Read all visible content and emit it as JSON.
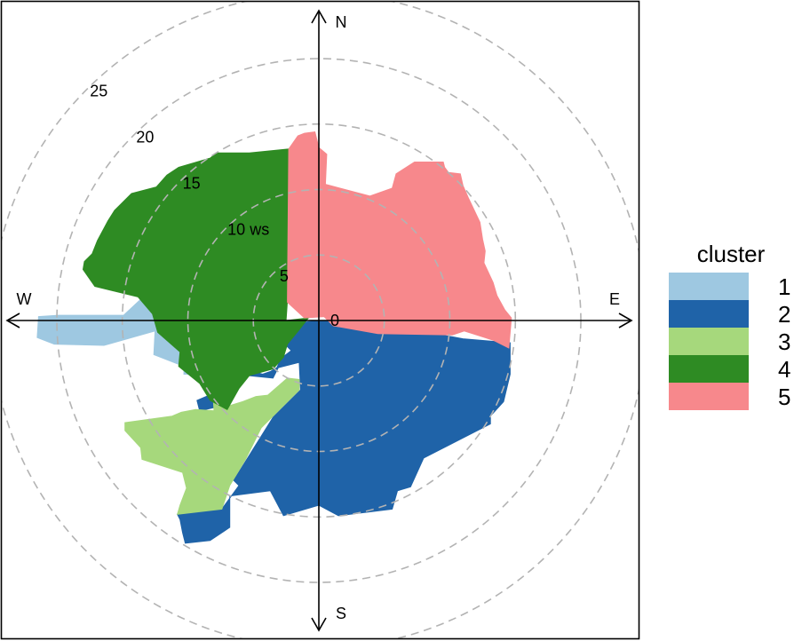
{
  "chart_data": {
    "type": "polar-cluster",
    "radial_variable": "ws",
    "radial_ticks": [
      0,
      5,
      10,
      15,
      20,
      25
    ],
    "radial_tick_labels": [
      "0",
      "5",
      "10 ws",
      "15",
      "20",
      "25"
    ],
    "radial_max": 25,
    "directions": [
      "N",
      "E",
      "S",
      "W"
    ],
    "legend": {
      "title": "cluster",
      "placement": "right",
      "entries": [
        {
          "label": "1",
          "color": "#9EC8E1"
        },
        {
          "label": "2",
          "color": "#1F63A8"
        },
        {
          "label": "3",
          "color": "#A6D87C"
        },
        {
          "label": "4",
          "color": "#2E8B23"
        },
        {
          "label": "5",
          "color": "#F7888C"
        }
      ]
    },
    "clusters": [
      {
        "id": "1",
        "polygon": [
          [
            -19.9,
            0.4
          ],
          [
            -14.9,
            0.4
          ],
          [
            -13.4,
            1.8
          ],
          [
            -10.2,
            2.6
          ],
          [
            -6.5,
            2.3
          ],
          [
            -6.5,
            -4.1
          ],
          [
            -10.3,
            -4.1
          ],
          [
            -10.3,
            -3.5
          ],
          [
            -12.6,
            -2.6
          ],
          [
            -12.5,
            -0.8
          ],
          [
            -16.4,
            -1.9
          ],
          [
            -20.2,
            -1.8
          ],
          [
            -21.5,
            -1.3
          ],
          [
            -21.4,
            0.3
          ]
        ]
      },
      {
        "id": "2",
        "polygon": [
          [
            0,
            0
          ],
          [
            3.4,
            0
          ],
          [
            11,
            -1.4
          ],
          [
            14.6,
            -1.7
          ],
          [
            14.6,
            -4.1
          ],
          [
            14.1,
            -6.2
          ],
          [
            13.1,
            -7.3
          ],
          [
            13.1,
            -7.9
          ],
          [
            8,
            -10.5
          ],
          [
            7,
            -12.7
          ],
          [
            6,
            -13
          ],
          [
            5.6,
            -14.4
          ],
          [
            1.5,
            -14.9
          ],
          [
            0,
            -14.1
          ],
          [
            -2.7,
            -14.9
          ],
          [
            -3.7,
            -13
          ],
          [
            -6.8,
            -13.4
          ],
          [
            -6.8,
            -15.8
          ],
          [
            -8.3,
            -16.8
          ],
          [
            -10.2,
            -17
          ],
          [
            -10.4,
            -16.2
          ],
          [
            -10.6,
            -15.2
          ],
          [
            -10.8,
            -14.8
          ],
          [
            -7.4,
            -14.4
          ],
          [
            -6.1,
            -12.6
          ],
          [
            -6.5,
            -12.2
          ],
          [
            -3.5,
            -7.4
          ],
          [
            -1.4,
            -5.3
          ],
          [
            -1.5,
            -3.2
          ],
          [
            -3.1,
            -3.6
          ],
          [
            -3.5,
            -4.4
          ],
          [
            -5.5,
            -4.2
          ],
          [
            -6.1,
            -4.8
          ],
          [
            -6.6,
            -4.8
          ],
          [
            -7,
            -6.6
          ],
          [
            -7.8,
            -6.6
          ],
          [
            -9.1,
            -6.9
          ],
          [
            -9.3,
            -6.1
          ],
          [
            -5.8,
            -4.6
          ],
          [
            -5.9,
            -3.7
          ],
          [
            -5.2,
            -3.8
          ],
          [
            -4.3,
            -4.1
          ],
          [
            -3.7,
            -3.9
          ],
          [
            -3.2,
            -3.6
          ],
          [
            -2.9,
            -2.9
          ],
          [
            -2.1,
            -2.3
          ],
          [
            -2.5,
            -1.9
          ],
          [
            -2.6,
            -1.2
          ],
          [
            -1.6,
            -0.2
          ]
        ]
      },
      {
        "id": "3",
        "polygon": [
          [
            -8.1,
            -5.3
          ],
          [
            -7.2,
            -4.4
          ],
          [
            -6.8,
            -6.5
          ],
          [
            -5.8,
            -6.2
          ],
          [
            -4.8,
            -5.8
          ],
          [
            -3.9,
            -5.7
          ],
          [
            -2.4,
            -4.4
          ],
          [
            -1.5,
            -4.5
          ],
          [
            -1.5,
            -5.3
          ],
          [
            -4.4,
            -8.2
          ],
          [
            -5.6,
            -10.6
          ],
          [
            -6.8,
            -12.6
          ],
          [
            -7.4,
            -14.4
          ],
          [
            -10.8,
            -14.8
          ],
          [
            -10.6,
            -14.1
          ],
          [
            -10.1,
            -12.8
          ],
          [
            -10.4,
            -11.6
          ],
          [
            -13.5,
            -10.6
          ],
          [
            -13.6,
            -9.7
          ],
          [
            -14.8,
            -8.4
          ],
          [
            -14.8,
            -7.8
          ],
          [
            -11.2,
            -7.3
          ],
          [
            -10.5,
            -7
          ],
          [
            -9.4,
            -6.8
          ],
          [
            -8,
            -6.9
          ]
        ]
      },
      {
        "id": "4",
        "polygon": [
          [
            -2.5,
            0
          ],
          [
            -2.4,
            1.5
          ],
          [
            -2.3,
            12.9
          ],
          [
            -2.3,
            13.1
          ],
          [
            -5.3,
            12.8
          ],
          [
            -7.8,
            12.8
          ],
          [
            -8.3,
            12.4
          ],
          [
            -10.7,
            11.7
          ],
          [
            -11.6,
            11.1
          ],
          [
            -12.4,
            10.2
          ],
          [
            -14.3,
            9.7
          ],
          [
            -15.1,
            8.9
          ],
          [
            -15.6,
            8.4
          ],
          [
            -16.1,
            7.6
          ],
          [
            -16.9,
            6.1
          ],
          [
            -17.3,
            5.1
          ],
          [
            -17.9,
            4.5
          ],
          [
            -18,
            3.9
          ],
          [
            -17.1,
            2.6
          ],
          [
            -13.8,
            1.8
          ],
          [
            -12.7,
            0.5
          ],
          [
            -12.3,
            -0.9
          ],
          [
            -10.6,
            -2.4
          ],
          [
            -10.7,
            -3.5
          ],
          [
            -9.1,
            -4.8
          ],
          [
            -8.3,
            -6.1
          ],
          [
            -7,
            -6.8
          ],
          [
            -6.1,
            -5.2
          ],
          [
            -5.3,
            -4.2
          ],
          [
            -3.5,
            -3.7
          ],
          [
            -2.7,
            -2.8
          ],
          [
            -2.4,
            -1.8
          ],
          [
            -1.5,
            -0.7
          ],
          [
            -0.8,
            0.2
          ]
        ]
      },
      {
        "id": "5",
        "polygon": [
          [
            -2.3,
            13.1
          ],
          [
            -1.6,
            14.1
          ],
          [
            -1.1,
            14.3
          ],
          [
            -0.3,
            14.4
          ],
          [
            0,
            13.2
          ],
          [
            0.6,
            12.7
          ],
          [
            0.5,
            10.4
          ],
          [
            3.9,
            9.5
          ],
          [
            5.6,
            10.1
          ],
          [
            5.9,
            11.2
          ],
          [
            7.3,
            12.1
          ],
          [
            9.5,
            12.1
          ],
          [
            9.6,
            11.7
          ],
          [
            9.9,
            11.3
          ],
          [
            10.8,
            11.2
          ],
          [
            11,
            10.3
          ],
          [
            11.4,
            9.4
          ],
          [
            12.3,
            7.5
          ],
          [
            12.5,
            6.2
          ],
          [
            12.7,
            5.3
          ],
          [
            12.6,
            4.4
          ],
          [
            13.3,
            2.9
          ],
          [
            13.6,
            1.9
          ],
          [
            14.2,
            0.8
          ],
          [
            14.7,
            0.2
          ],
          [
            14.5,
            -2.1
          ],
          [
            13.3,
            -1.5
          ],
          [
            11.1,
            -0.8
          ],
          [
            10.2,
            -1.1
          ],
          [
            4.5,
            -1
          ],
          [
            1.1,
            -0.4
          ],
          [
            0.4,
            0.3
          ],
          [
            -1.1,
            0.2
          ],
          [
            -2.4,
            1.4
          ]
        ]
      }
    ]
  }
}
